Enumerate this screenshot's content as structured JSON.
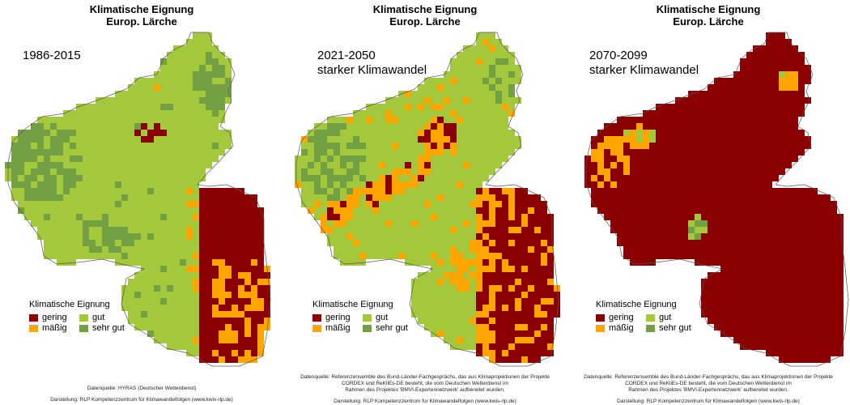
{
  "colors": {
    "gering": "#8b0000",
    "maessig": "#ffa500",
    "gut": "#a4c83c",
    "sehr_gut": "#74a044",
    "outline": "#555555"
  },
  "legend": {
    "title": "Klimatische Eignung",
    "gering": "gering",
    "maessig": "mäßig",
    "gut": "gut",
    "sehr_gut": "sehr gut"
  },
  "panels": [
    {
      "title_line1": "Klimatische Eignung",
      "title_line2": "Europ. Lärche",
      "period": "1986-2015",
      "scenario": "",
      "source_lines": [
        "Datenquelle: HYRAS (Deutscher Wetterdienst)",
        "Darstellung: RLP Kompetenzzentrum für Klimawandelfolgen (www.kwis-rlp.de)"
      ]
    },
    {
      "title_line1": "Klimatische Eignung",
      "title_line2": "Europ. Lärche",
      "period": "2021-2050",
      "scenario": "starker Klimawandel",
      "source_lines": [
        "Datenquelle: Referenzensemble des Bund-Länder-Fachgesprächs, das aus Klimaprojektionen der Projekte",
        "CORDEX und ReKliEs-DE besteht, die vom Deutschen Wetterdienst im",
        "Rahmen des Projektes 'BMVI-Expertennetzwerk' aufbereitet wurden.",
        "Darstellung: RLP Kompetenzzentrum für Klimawandelfolgen (www.kwis-rlp.de)"
      ]
    },
    {
      "title_line1": "Klimatische Eignung",
      "title_line2": "Europ. Lärche",
      "period": "2070-2099",
      "scenario": "starker Klimawandel",
      "source_lines": [
        "Datenquelle: Referenzensemble des Bund-Länder-Fachgesprächs, das aus Klimaprojektionen der Projekte",
        "CORDEX und ReKliEs-DE besteht, die vom Deutschen Wetterdienst im",
        "Rahmen des Projektes 'BMVI-Expertennetzwerk' aufbereitet wurden.",
        "Darstellung: RLP Kompetenzzentrum für Klimawandelfolgen (www.kwis-rlp.de)"
      ]
    }
  ]
}
